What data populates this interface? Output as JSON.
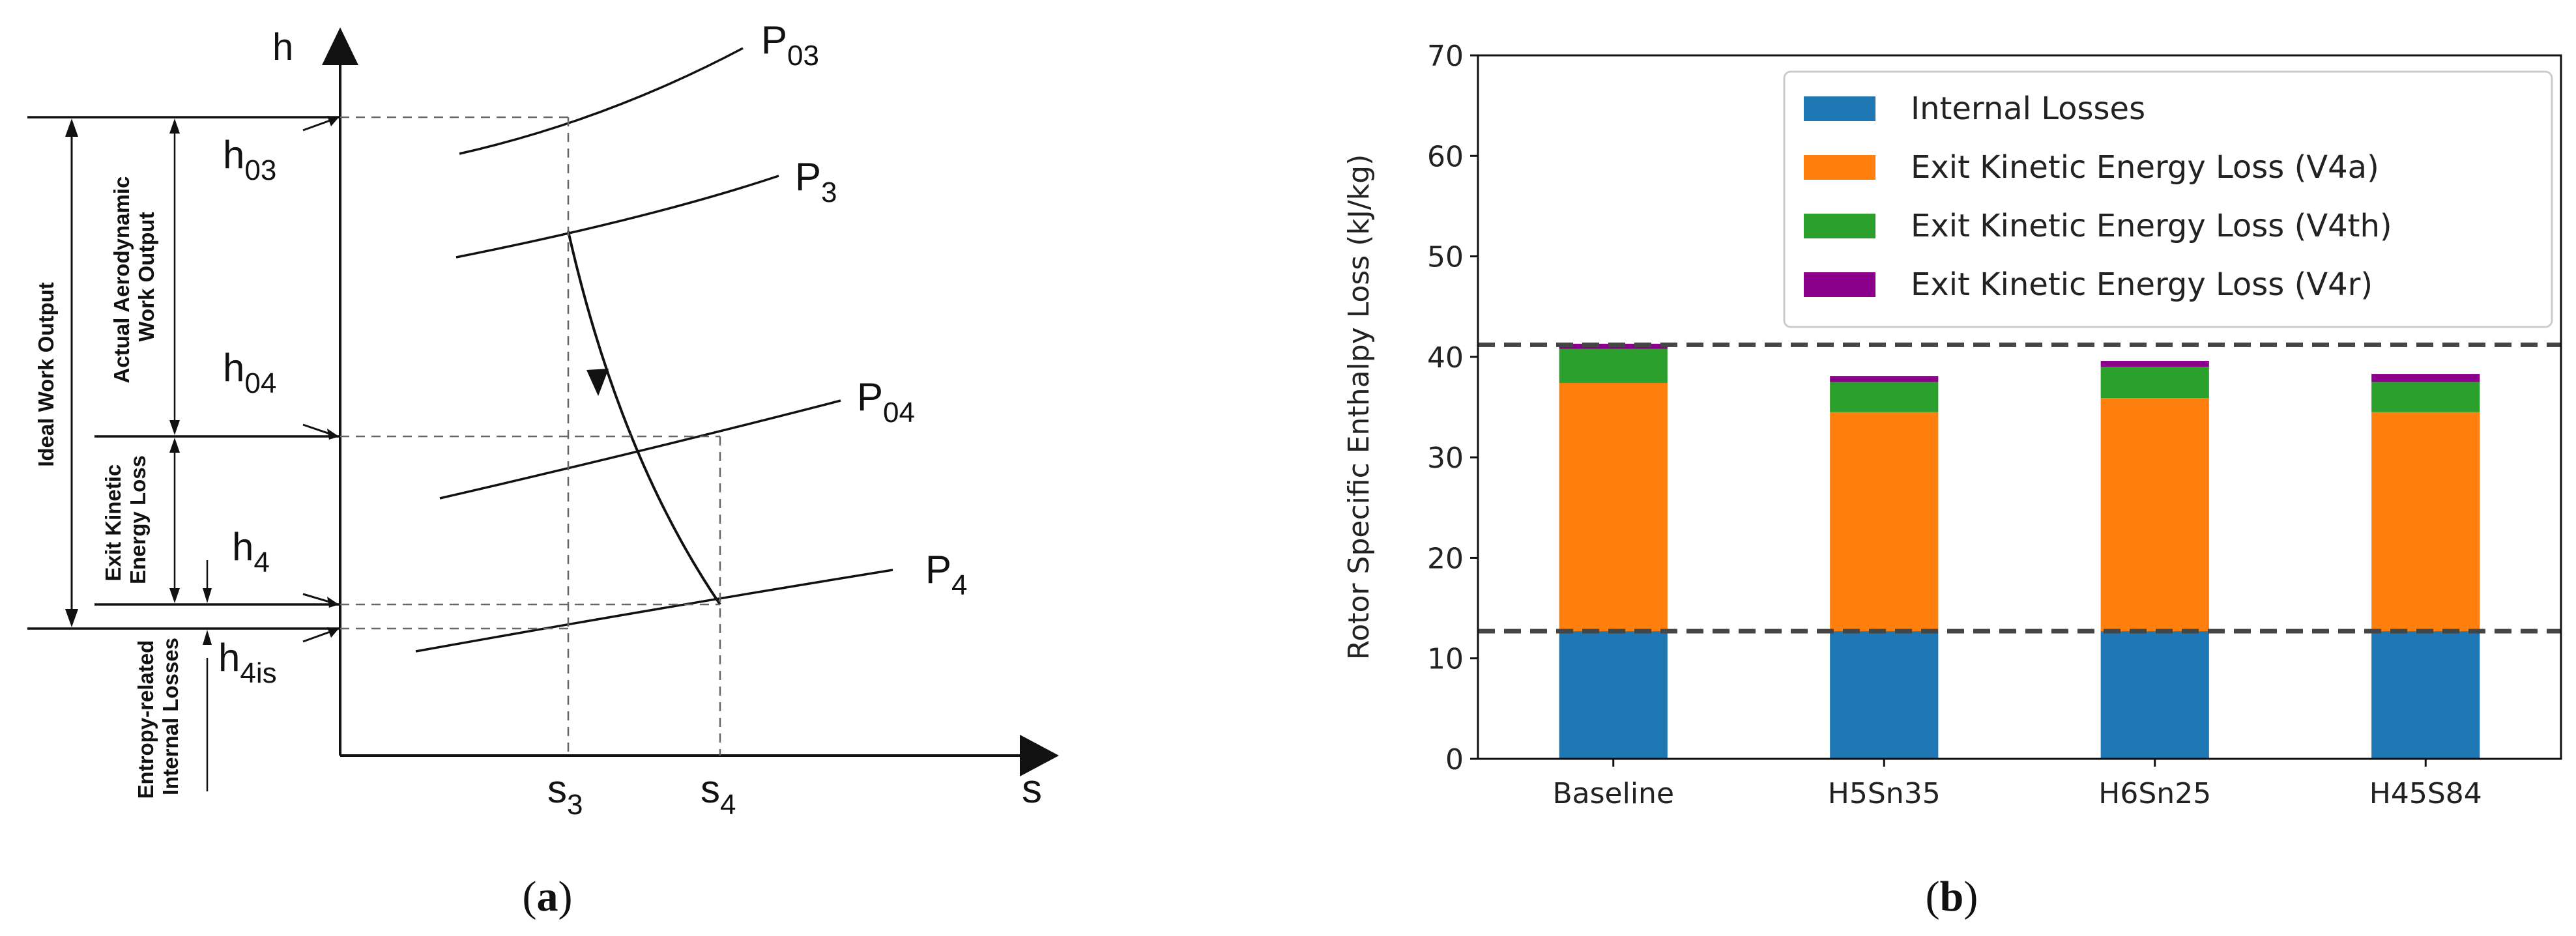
{
  "panel_a": {
    "axis_h": "h",
    "axis_s": "s",
    "pressure_labels": [
      {
        "base": "P",
        "sub": "03"
      },
      {
        "base": "P",
        "sub": "3"
      },
      {
        "base": "P",
        "sub": "04"
      },
      {
        "base": "P",
        "sub": "4"
      }
    ],
    "enthalpy_labels": [
      {
        "base": "h",
        "sub": "03"
      },
      {
        "base": "h",
        "sub": "04"
      },
      {
        "base": "h",
        "sub": "4"
      },
      {
        "base": "h",
        "sub": "4is"
      }
    ],
    "entropy_labels": [
      {
        "base": "s",
        "sub": "3"
      },
      {
        "base": "s",
        "sub": "4"
      }
    ],
    "bracket_labels": {
      "ideal": "Ideal Work Output",
      "actual_line1": "Actual Aerodynamic",
      "actual_line2": "Work Output",
      "exit_line1": "Exit Kinetic",
      "exit_line2": "Energy Loss",
      "entropy_line1": "Entropy-related",
      "entropy_line2": "Internal Losses"
    }
  },
  "captions": {
    "a_open": "(",
    "a_letter": "a",
    "a_close": ")",
    "b_open": "(",
    "b_letter": "b",
    "b_close": ")"
  },
  "chart_data": {
    "type": "bar",
    "stacked": true,
    "categories": [
      "Baseline",
      "H5Sn35",
      "H6Sn25",
      "H45S84"
    ],
    "series": [
      {
        "name": "Internal Losses",
        "color": "#1f77b4",
        "values": [
          12.7,
          12.7,
          12.7,
          12.7
        ]
      },
      {
        "name": "Exit Kinetic Energy Loss (V4a)",
        "color": "#ff7f0e",
        "values": [
          24.7,
          21.8,
          23.2,
          21.8
        ]
      },
      {
        "name": "Exit Kinetic Energy Loss (V4th)",
        "color": "#2ca02c",
        "values": [
          3.4,
          3.0,
          3.1,
          3.0
        ]
      },
      {
        "name": "Exit Kinetic Energy Loss (V4r)",
        "color": "#8b008b",
        "values": [
          0.5,
          0.6,
          0.6,
          0.8
        ]
      }
    ],
    "reference_lines": [
      12.7,
      41.2
    ],
    "ylabel": "Rotor Specific Enthalpy Loss (kJ/kg)",
    "xlabel": "",
    "ylim": [
      0,
      70
    ],
    "yticks": [
      0,
      10,
      20,
      30,
      40,
      50,
      60,
      70
    ],
    "grid": false,
    "legend_position": "top-right"
  }
}
